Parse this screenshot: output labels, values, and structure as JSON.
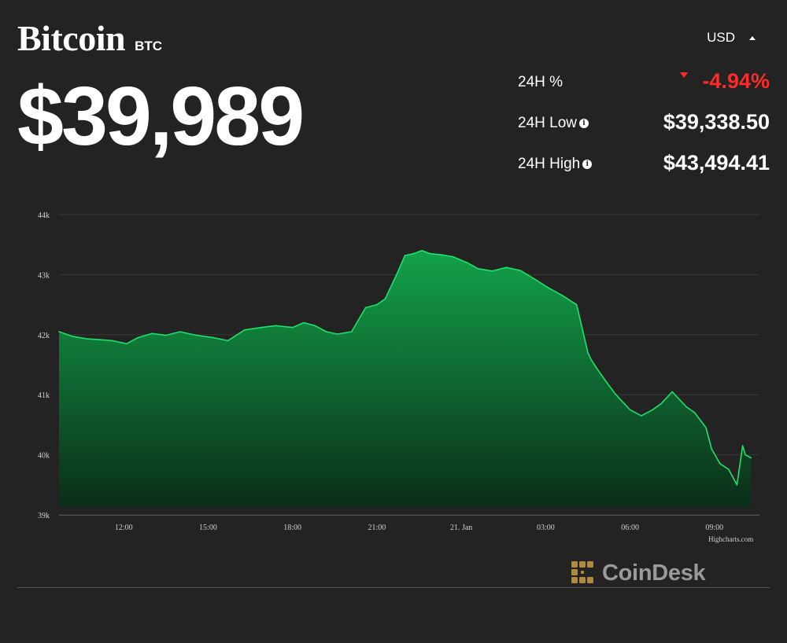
{
  "header": {
    "coin_name": "Bitcoin",
    "coin_ticker": "BTC",
    "price": "$39,989",
    "currency": "USD"
  },
  "stats": [
    {
      "label": "24H %",
      "value": "-4.94%",
      "trend": "down",
      "info": false
    },
    {
      "label": "24H Low",
      "value": "$39,338.50",
      "info": true
    },
    {
      "label": "24H High",
      "value": "$43,494.41",
      "info": true
    }
  ],
  "credit": "Highcharts.com",
  "brand": {
    "name": "CoinDesk",
    "logo_color": "#b08a3e"
  },
  "colors": {
    "background": "#232323",
    "line": "#1ee36a",
    "fill_top": "#0f8a3e",
    "negative": "#ff2a2a"
  },
  "chart_data": {
    "type": "area",
    "title": "",
    "xlabel": "",
    "ylabel": "",
    "ylim": [
      39000,
      44000
    ],
    "y_ticks": [
      {
        "v": 44000,
        "label": "44k"
      },
      {
        "v": 43000,
        "label": "43k"
      },
      {
        "v": 42000,
        "label": "42k"
      },
      {
        "v": 41000,
        "label": "41k"
      },
      {
        "v": 40000,
        "label": "40k"
      },
      {
        "v": 39000,
        "label": "39k"
      }
    ],
    "x_range": [
      9.7,
      34.6
    ],
    "x_ticks": [
      {
        "h": 12,
        "label": "12:00"
      },
      {
        "h": 15,
        "label": "15:00"
      },
      {
        "h": 18,
        "label": "18:00"
      },
      {
        "h": 21,
        "label": "21:00"
      },
      {
        "h": 24,
        "label": "21. Jan"
      },
      {
        "h": 27,
        "label": "03:00"
      },
      {
        "h": 30,
        "label": "06:00"
      },
      {
        "h": 33,
        "label": "09:00"
      }
    ],
    "grid": true,
    "series": [
      {
        "x": [
          9.7,
          10.2,
          10.7,
          11.1,
          11.6,
          12.1,
          12.5,
          13,
          13.5,
          14,
          14.6,
          15.2,
          15.7,
          16.3,
          16.9,
          17.4,
          18,
          18.4,
          18.8,
          19.2,
          19.6,
          20.1,
          20.6,
          21,
          21.3,
          21.7,
          22,
          22.3,
          22.6,
          22.9,
          23.3,
          23.7,
          24.2,
          24.6,
          25.1,
          25.6,
          26.1,
          26.7,
          27.1,
          27.6,
          28.1,
          28.5,
          28.6,
          28.8,
          29.1,
          29.5,
          30,
          30.4,
          30.8,
          31.1,
          31.5,
          31.7,
          32,
          32.3,
          32.7,
          32.9,
          33.2,
          33.5,
          33.8,
          34,
          34.1,
          34.3
        ],
        "y": [
          42050,
          41970,
          41930,
          41920,
          41900,
          41850,
          41950,
          42020,
          41990,
          42050,
          41990,
          41950,
          41900,
          42080,
          42120,
          42150,
          42120,
          42200,
          42150,
          42050,
          42010,
          42050,
          42450,
          42500,
          42600,
          43000,
          43320,
          43350,
          43400,
          43350,
          43330,
          43300,
          43200,
          43100,
          43060,
          43120,
          43070,
          42900,
          42780,
          42650,
          42500,
          41700,
          41600,
          41450,
          41250,
          41000,
          40750,
          40650,
          40750,
          40850,
          41050,
          40950,
          40800,
          40700,
          40450,
          40100,
          39850,
          39760,
          39500,
          40150,
          40000,
          39950
        ]
      }
    ]
  }
}
